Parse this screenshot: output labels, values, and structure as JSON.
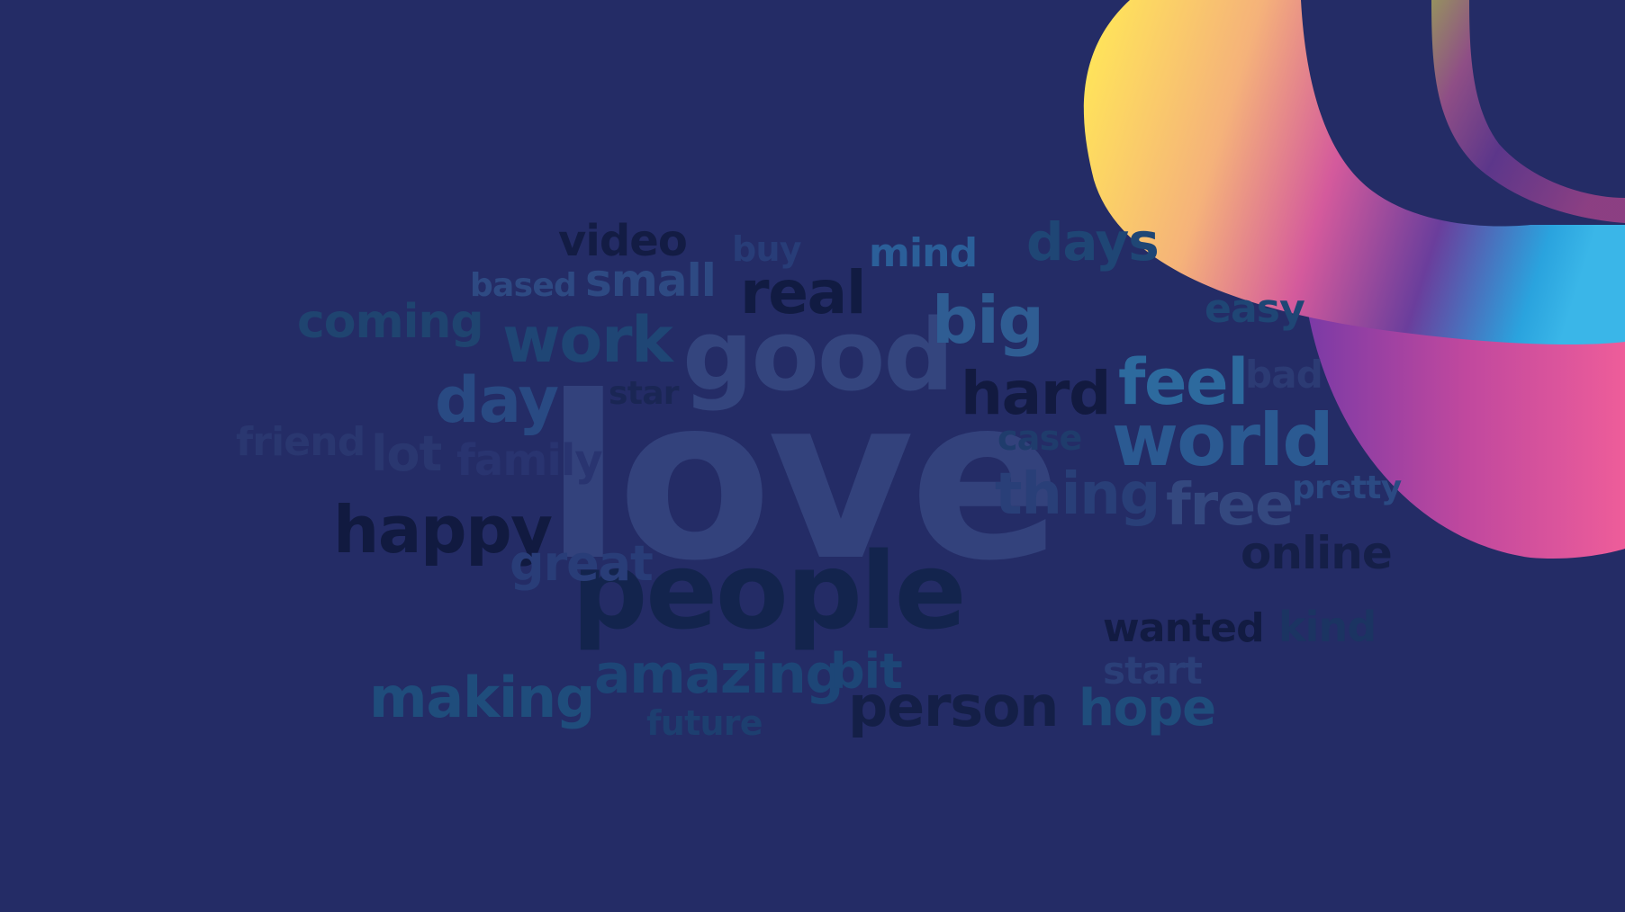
{
  "background_color": "#242c66",
  "words": [
    {
      "text": "love",
      "color": "#33427c"
    },
    {
      "text": "people",
      "color": "#13244d"
    },
    {
      "text": "good",
      "color": "#34457e"
    },
    {
      "text": "work",
      "color": "#1f4675"
    },
    {
      "text": "happy",
      "color": "#111a40"
    },
    {
      "text": "real",
      "color": "#111b42"
    },
    {
      "text": "big",
      "color": "#2f5d93"
    },
    {
      "text": "hard",
      "color": "#121a40"
    },
    {
      "text": "feel",
      "color": "#2d6a9e"
    },
    {
      "text": "world",
      "color": "#2b5a92"
    },
    {
      "text": "thing",
      "color": "#293f78"
    },
    {
      "text": "free",
      "color": "#34487f"
    },
    {
      "text": "online",
      "color": "#151f48"
    },
    {
      "text": "video",
      "color": "#131c44"
    },
    {
      "text": "small",
      "color": "#2e4a83"
    },
    {
      "text": "based",
      "color": "#2e4a83"
    },
    {
      "text": "coming",
      "color": "#1f4470"
    },
    {
      "text": "mind",
      "color": "#2b5f99"
    },
    {
      "text": "days",
      "color": "#1f4675"
    },
    {
      "text": "easy",
      "color": "#1f4675"
    },
    {
      "text": "buy",
      "color": "#283d78"
    },
    {
      "text": "day",
      "color": "#294a83"
    },
    {
      "text": "star",
      "color": "#1a2654"
    },
    {
      "text": "friend",
      "color": "#2a3770"
    },
    {
      "text": "lot",
      "color": "#2a3770"
    },
    {
      "text": "family",
      "color": "#293470"
    },
    {
      "text": "case",
      "color": "#1f3c6c"
    },
    {
      "text": "bad",
      "color": "#2c3b74"
    },
    {
      "text": "pretty",
      "color": "#2b4a83"
    },
    {
      "text": "great",
      "color": "#293d78"
    },
    {
      "text": "wanted",
      "color": "#121b42"
    },
    {
      "text": "kind",
      "color": "#1b3462"
    },
    {
      "text": "start",
      "color": "#2b3f78"
    },
    {
      "text": "making",
      "color": "#1f4d7c"
    },
    {
      "text": "amazing",
      "color": "#1d4677"
    },
    {
      "text": "bit",
      "color": "#1d4677"
    },
    {
      "text": "person",
      "color": "#141f47"
    },
    {
      "text": "hope",
      "color": "#1f4d7c"
    },
    {
      "text": "future",
      "color": "#1d3f70"
    }
  ]
}
